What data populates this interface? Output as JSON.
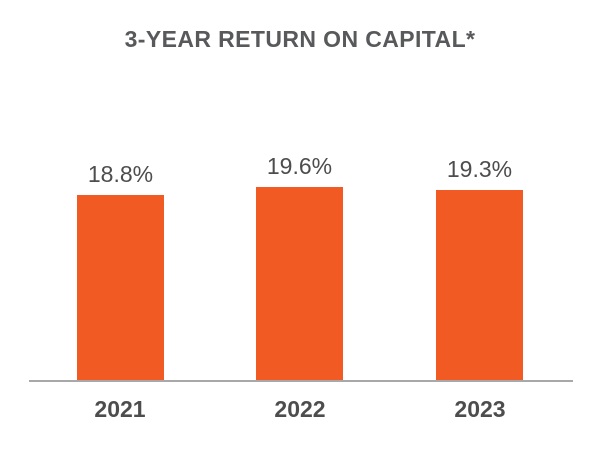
{
  "chart": {
    "title": "3-YEAR RETURN ON CAPITAL*"
  },
  "chart_data": {
    "type": "bar",
    "title": "3-YEAR RETURN ON CAPITAL*",
    "categories": [
      "2021",
      "2022",
      "2023"
    ],
    "values": [
      18.8,
      19.6,
      19.3
    ],
    "value_labels": [
      "18.8%",
      "19.6%",
      "19.3%"
    ],
    "unit": "%",
    "ylim": [
      0,
      19.6
    ],
    "xlabel": "",
    "ylabel": "",
    "grid": false,
    "legend": false,
    "y_axis_visible": false,
    "x_axis_line": true,
    "bar_color": "#F15A22",
    "axis_line_color": "#A8A8A8",
    "title_color": "#58595B",
    "label_color": "#4D4D4D",
    "footnote_marker": "*"
  }
}
